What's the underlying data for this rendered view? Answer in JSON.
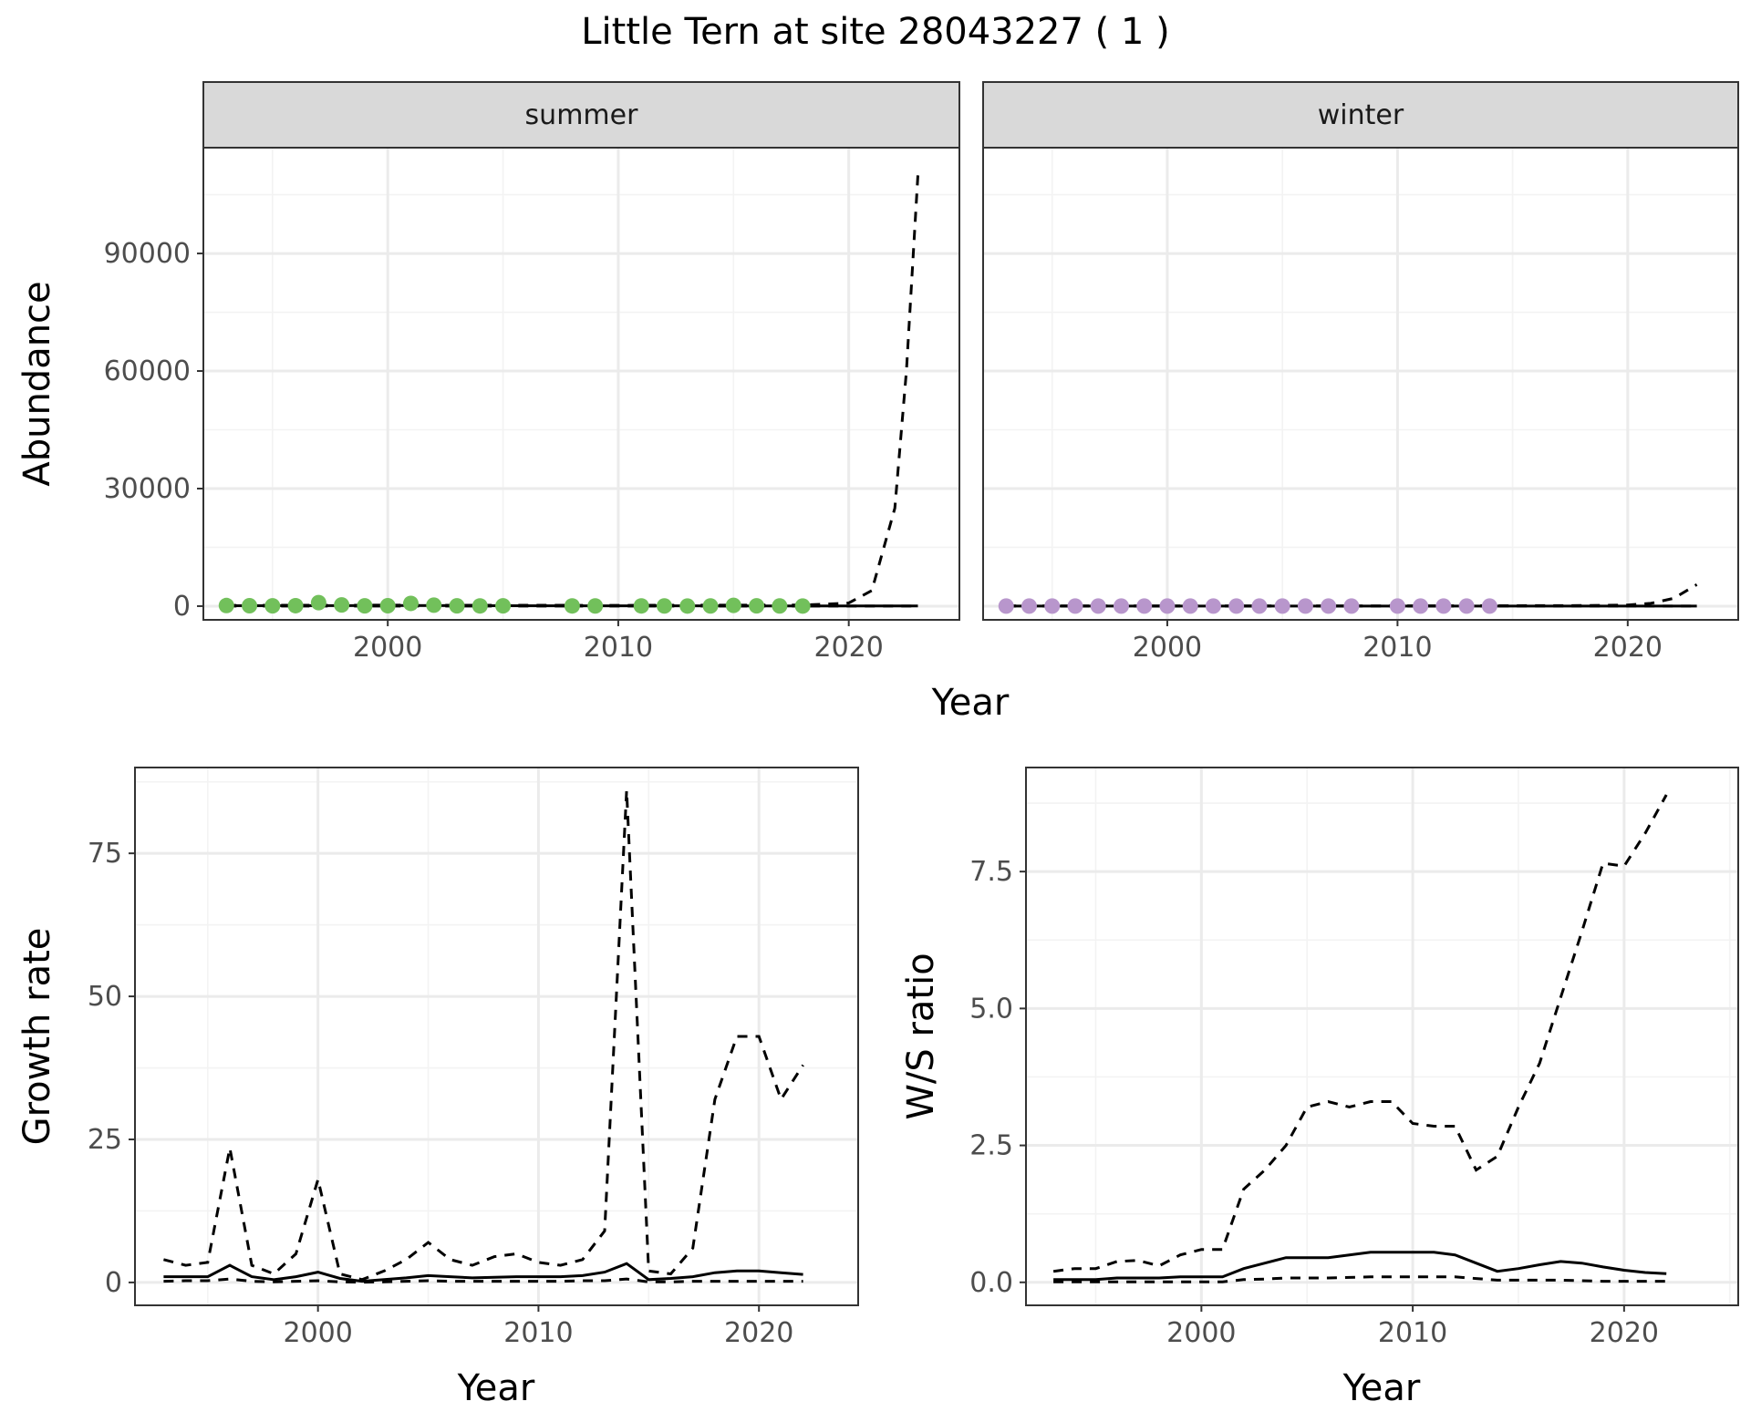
{
  "title": "Little Tern at site 28043227 ( 1 )",
  "colors": {
    "summer_points": "#72c05b",
    "winter_points": "#b896cc",
    "line": "#000000",
    "grid_major": "#ebebeb",
    "grid_minor": "#f3f3f3",
    "strip_fill": "#d9d9d9",
    "panel_border": "#333333"
  },
  "chart_data": [
    {
      "type": "scatter",
      "panel": "abundance",
      "facets": [
        "summer",
        "winter"
      ],
      "xlabel": "Year",
      "ylabel": "Abundance",
      "xlim": [
        1992,
        2024.8
      ],
      "ylim": [
        -3500,
        117000
      ],
      "xticks": [
        2000,
        2010,
        2020
      ],
      "yticks": [
        0,
        30000,
        60000,
        90000
      ],
      "ytick_labels": [
        "0",
        "30000",
        "60000",
        "90000"
      ],
      "grid": true,
      "facet_data": [
        {
          "name": "summer",
          "points": [
            [
              1993,
              150
            ],
            [
              1994,
              100
            ],
            [
              1995,
              80
            ],
            [
              1996,
              120
            ],
            [
              1997,
              900
            ],
            [
              1998,
              300
            ],
            [
              1999,
              80
            ],
            [
              2000,
              100
            ],
            [
              2001,
              700
            ],
            [
              2002,
              250
            ],
            [
              2003,
              80
            ],
            [
              2004,
              60
            ],
            [
              2005,
              70
            ],
            [
              2008,
              60
            ],
            [
              2009,
              50
            ],
            [
              2011,
              60
            ],
            [
              2012,
              40
            ],
            [
              2013,
              30
            ],
            [
              2014,
              50
            ],
            [
              2015,
              200
            ],
            [
              2016,
              80
            ],
            [
              2017,
              40
            ],
            [
              2018,
              30
            ]
          ],
          "solid": [
            [
              1993,
              100
            ],
            [
              2000,
              150
            ],
            [
              2005,
              100
            ],
            [
              2010,
              80
            ],
            [
              2015,
              60
            ],
            [
              2020,
              60
            ],
            [
              2023,
              50
            ]
          ],
          "dashed_upper": [
            [
              1993,
              200
            ],
            [
              2000,
              250
            ],
            [
              2010,
              200
            ],
            [
              2018,
              300
            ],
            [
              2019,
              500
            ],
            [
              2020,
              800
            ],
            [
              2021,
              4000
            ],
            [
              2022,
              25000
            ],
            [
              2022.5,
              60000
            ],
            [
              2023,
              110000
            ]
          ],
          "dashed_lower": [
            [
              1993,
              10
            ],
            [
              2023,
              10
            ]
          ]
        },
        {
          "name": "winter",
          "points": [
            [
              1993,
              20
            ],
            [
              1994,
              20
            ],
            [
              1995,
              20
            ],
            [
              1996,
              20
            ],
            [
              1997,
              20
            ],
            [
              1998,
              20
            ],
            [
              1999,
              20
            ],
            [
              2000,
              20
            ],
            [
              2001,
              20
            ],
            [
              2002,
              20
            ],
            [
              2003,
              20
            ],
            [
              2004,
              20
            ],
            [
              2005,
              20
            ],
            [
              2006,
              20
            ],
            [
              2007,
              20
            ],
            [
              2008,
              20
            ],
            [
              2010,
              20
            ],
            [
              2011,
              20
            ],
            [
              2012,
              20
            ],
            [
              2013,
              20
            ],
            [
              2014,
              20
            ]
          ],
          "solid": [
            [
              1993,
              20
            ],
            [
              2023,
              20
            ]
          ],
          "dashed_upper": [
            [
              1993,
              40
            ],
            [
              2010,
              60
            ],
            [
              2018,
              150
            ],
            [
              2020,
              300
            ],
            [
              2021,
              700
            ],
            [
              2022,
              2000
            ],
            [
              2023,
              5500
            ]
          ],
          "dashed_lower": [
            [
              1993,
              5
            ],
            [
              2023,
              5
            ]
          ]
        }
      ]
    },
    {
      "type": "line",
      "panel": "growth-rate",
      "xlabel": "Year",
      "ylabel": "Growth rate",
      "xlim": [
        1991.7,
        2024.5
      ],
      "ylim": [
        -4,
        90
      ],
      "xticks": [
        2000,
        2010,
        2020
      ],
      "yticks": [
        0,
        25,
        50,
        75
      ],
      "ytick_labels": [
        "0",
        "25",
        "50",
        "75"
      ],
      "grid": true,
      "series": [
        {
          "style": "solid",
          "x": [
            1993,
            1994,
            1995,
            1996,
            1997,
            1998,
            1999,
            2000,
            2001,
            2002,
            2003,
            2004,
            2005,
            2006,
            2007,
            2008,
            2009,
            2010,
            2011,
            2012,
            2013,
            2014,
            2015,
            2016,
            2017,
            2018,
            2019,
            2020,
            2021,
            2022
          ],
          "y": [
            1,
            1,
            1,
            3,
            1,
            0.5,
            1,
            1.8,
            0.7,
            0.2,
            0.5,
            0.8,
            1.2,
            1,
            0.8,
            0.9,
            1,
            1,
            1,
            1.2,
            1.8,
            3.3,
            0.5,
            0.7,
            1,
            1.7,
            2,
            2,
            1.7,
            1.4
          ]
        },
        {
          "style": "dashed",
          "x": [
            1993,
            1994,
            1995,
            1996,
            1997,
            1998,
            1999,
            2000,
            2001,
            2002,
            2003,
            2004,
            2005,
            2006,
            2007,
            2008,
            2009,
            2010,
            2011,
            2012,
            2013,
            2014,
            2015,
            2016,
            2017,
            2018,
            2019,
            2020,
            2021,
            2022
          ],
          "y": [
            4,
            3,
            3.5,
            23.5,
            3,
            1.5,
            5,
            18,
            1.5,
            0.5,
            2,
            4,
            7,
            4,
            3,
            4.5,
            5,
            3.5,
            3,
            4,
            9,
            86,
            2,
            1.5,
            6,
            32,
            43,
            43,
            32,
            38
          ]
        },
        {
          "style": "dashed",
          "x": [
            1993,
            1994,
            1995,
            1996,
            1997,
            1998,
            1999,
            2000,
            2001,
            2002,
            2003,
            2004,
            2005,
            2006,
            2007,
            2008,
            2009,
            2010,
            2011,
            2012,
            2013,
            2014,
            2015,
            2016,
            2017,
            2018,
            2019,
            2020,
            2021,
            2022
          ],
          "y": [
            0.2,
            0.3,
            0.3,
            0.6,
            0.2,
            0.1,
            0.2,
            0.3,
            0.1,
            0.05,
            0.1,
            0.2,
            0.3,
            0.2,
            0.2,
            0.2,
            0.2,
            0.2,
            0.2,
            0.3,
            0.3,
            0.6,
            0.1,
            0.1,
            0.2,
            0.2,
            0.2,
            0.2,
            0.2,
            0.2
          ]
        }
      ]
    },
    {
      "type": "line",
      "panel": "ws-ratio",
      "xlabel": "Year",
      "ylabel": "W/S ratio",
      "xlim": [
        1991.7,
        2025.4
      ],
      "ylim": [
        -0.42,
        9.4
      ],
      "xticks": [
        2000,
        2010,
        2020
      ],
      "yticks": [
        0,
        2.5,
        5,
        7.5
      ],
      "ytick_labels": [
        "0.0",
        "2.5",
        "5.0",
        "7.5"
      ],
      "grid": true,
      "series": [
        {
          "style": "solid",
          "x": [
            1993,
            1994,
            1995,
            1996,
            1997,
            1998,
            1999,
            2000,
            2001,
            2002,
            2003,
            2004,
            2005,
            2006,
            2007,
            2008,
            2009,
            2010,
            2011,
            2012,
            2013,
            2014,
            2015,
            2016,
            2017,
            2018,
            2019,
            2020,
            2021,
            2022
          ],
          "y": [
            0.05,
            0.05,
            0.05,
            0.08,
            0.08,
            0.08,
            0.1,
            0.1,
            0.1,
            0.25,
            0.35,
            0.45,
            0.45,
            0.45,
            0.5,
            0.55,
            0.55,
            0.55,
            0.55,
            0.5,
            0.35,
            0.2,
            0.25,
            0.32,
            0.38,
            0.35,
            0.28,
            0.22,
            0.18,
            0.16
          ]
        },
        {
          "style": "dashed",
          "x": [
            1993,
            1994,
            1995,
            1996,
            1997,
            1998,
            1999,
            2000,
            2001,
            2002,
            2003,
            2004,
            2005,
            2006,
            2007,
            2008,
            2009,
            2010,
            2011,
            2012,
            2013,
            2014,
            2015,
            2016,
            2017,
            2018,
            2019,
            2020,
            2021,
            2022
          ],
          "y": [
            0.2,
            0.25,
            0.25,
            0.38,
            0.4,
            0.3,
            0.5,
            0.6,
            0.6,
            1.7,
            2.05,
            2.5,
            3.2,
            3.3,
            3.2,
            3.3,
            3.3,
            2.9,
            2.85,
            2.85,
            2.05,
            2.3,
            3.2,
            4,
            5.2,
            6.4,
            7.65,
            7.6,
            8.2,
            8.9
          ]
        },
        {
          "style": "dashed",
          "x": [
            1993,
            1994,
            1995,
            1996,
            1997,
            1998,
            1999,
            2000,
            2001,
            2002,
            2003,
            2004,
            2005,
            2006,
            2007,
            2008,
            2009,
            2010,
            2011,
            2012,
            2013,
            2014,
            2015,
            2016,
            2017,
            2018,
            2019,
            2020,
            2021,
            2022
          ],
          "y": [
            0.01,
            0.01,
            0.01,
            0.01,
            0.01,
            0.01,
            0.01,
            0.01,
            0.01,
            0.05,
            0.06,
            0.08,
            0.08,
            0.08,
            0.09,
            0.1,
            0.1,
            0.1,
            0.1,
            0.1,
            0.07,
            0.04,
            0.04,
            0.04,
            0.04,
            0.03,
            0.02,
            0.02,
            0.02,
            0.02
          ]
        }
      ]
    }
  ]
}
